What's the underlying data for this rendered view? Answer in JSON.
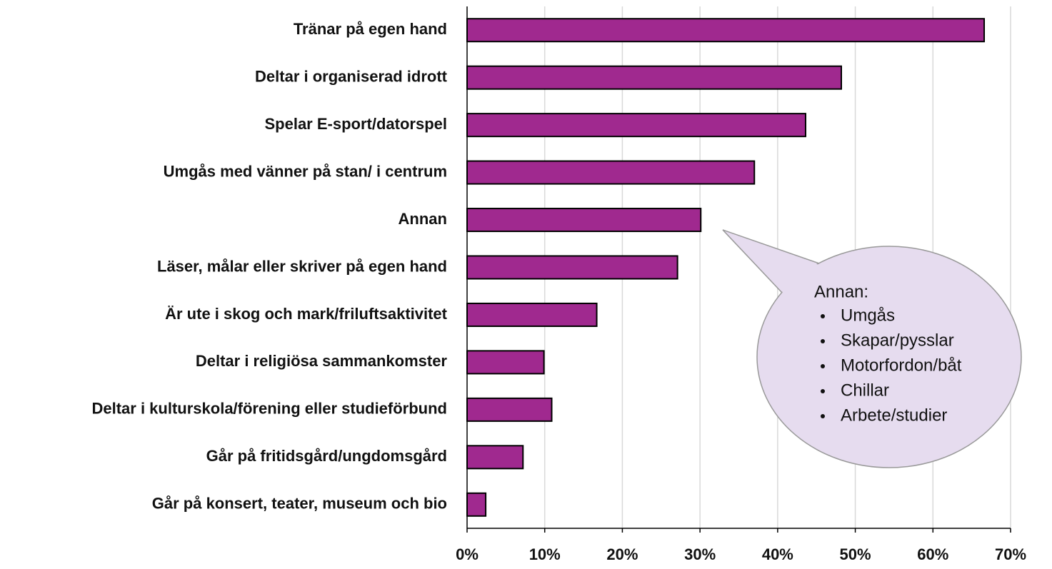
{
  "chart_data": {
    "type": "barh",
    "categories": [
      "Tränar på egen hand",
      "Deltar i organiserad idrott",
      "Spelar E-sport/datorspel",
      "Umgås med vänner på stan/ i centrum",
      "Annan",
      "Läser, målar eller skriver på egen hand",
      "Är ute i skog och mark/friluftsaktivitet",
      "Deltar i religiösa sammankomster",
      "Deltar i kulturskola/förening eller studieförbund",
      "Går på fritidsgård/ungdomsgård",
      "Går på konsert, teater, museum och bio"
    ],
    "values": [
      66.6,
      48.2,
      43.6,
      37.0,
      30.1,
      27.1,
      16.7,
      9.9,
      10.9,
      7.2,
      2.4
    ],
    "color": "#a0298f",
    "xlim": [
      0,
      70
    ],
    "xticks": [
      {
        "value": 0,
        "label": "0%"
      },
      {
        "value": 10,
        "label": "10%"
      },
      {
        "value": 20,
        "label": "20%"
      },
      {
        "value": 30,
        "label": "30%"
      },
      {
        "value": 40,
        "label": "40%"
      },
      {
        "value": 50,
        "label": "50%"
      },
      {
        "value": 60,
        "label": "60%"
      },
      {
        "value": 70,
        "label": "70%"
      }
    ],
    "grid": true,
    "annotation": {
      "title": "Annan:",
      "items": [
        "Umgås",
        "Skapar/pysslar",
        "Motorfordon/båt",
        "Chillar",
        "Arbete/studier"
      ]
    }
  }
}
